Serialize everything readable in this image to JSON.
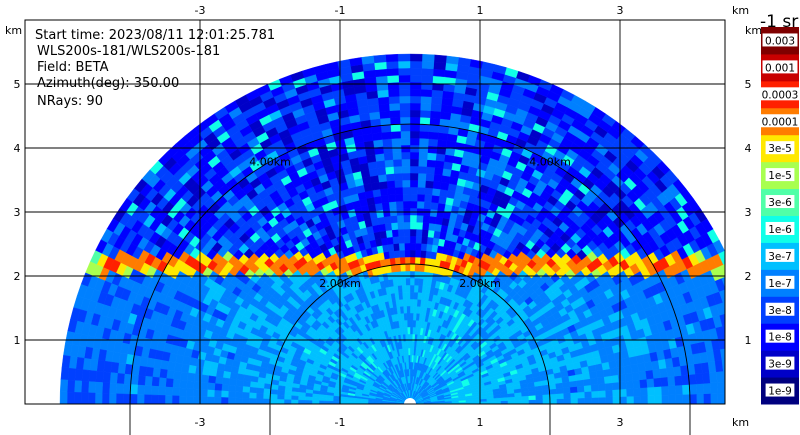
{
  "chart_data": {
    "type": "heatmap",
    "subtype": "ppi-sector-scan",
    "info": {
      "start_time": "Start time: 2023/08/11 12:01:25.781",
      "instrument": "WLS200s-181/WLS200s-181",
      "field": "Field: BETA",
      "azimuth": "Azimuth(deg): 350.00",
      "nrays": "NRays: 90"
    },
    "x_unit": "km",
    "y_unit": "km",
    "xlim": [
      -5.5,
      4.5
    ],
    "ylim": [
      0,
      6.0
    ],
    "x_ticks": [
      -3,
      -1,
      1,
      3
    ],
    "y_ticks": [
      1,
      2,
      3,
      4,
      5
    ],
    "range_rings": [
      {
        "radius_km": 2.0,
        "label": "2.00km"
      },
      {
        "radius_km": 4.0,
        "label": "4.00km"
      }
    ],
    "colorbar": {
      "title": "-1 sr",
      "levels": [
        {
          "label": "1e-9",
          "color": "#00007f"
        },
        {
          "label": "3e-9",
          "color": "#0000c8"
        },
        {
          "label": "1e-8",
          "color": "#0000ff"
        },
        {
          "label": "3e-8",
          "color": "#0040ff"
        },
        {
          "label": "1e-7",
          "color": "#0080ff"
        },
        {
          "label": "3e-7",
          "color": "#00c0ff"
        },
        {
          "label": "1e-6",
          "color": "#10ffe8"
        },
        {
          "label": "3e-6",
          "color": "#50ffa8"
        },
        {
          "label": "1e-5",
          "color": "#a8ff50"
        },
        {
          "label": "3e-5",
          "color": "#ffe800"
        },
        {
          "label": "0.0001",
          "color": "#ff7c00"
        },
        {
          "label": "0.0003",
          "color": "#ff2000"
        },
        {
          "label": "0.001",
          "color": "#c80000"
        },
        {
          "label": "0.003",
          "color": "#7f0000"
        }
      ]
    },
    "features": {
      "scan_max_range_km": 5.0,
      "layer_height_km": 2.0,
      "layer_peak_level": "0.0003"
    }
  }
}
